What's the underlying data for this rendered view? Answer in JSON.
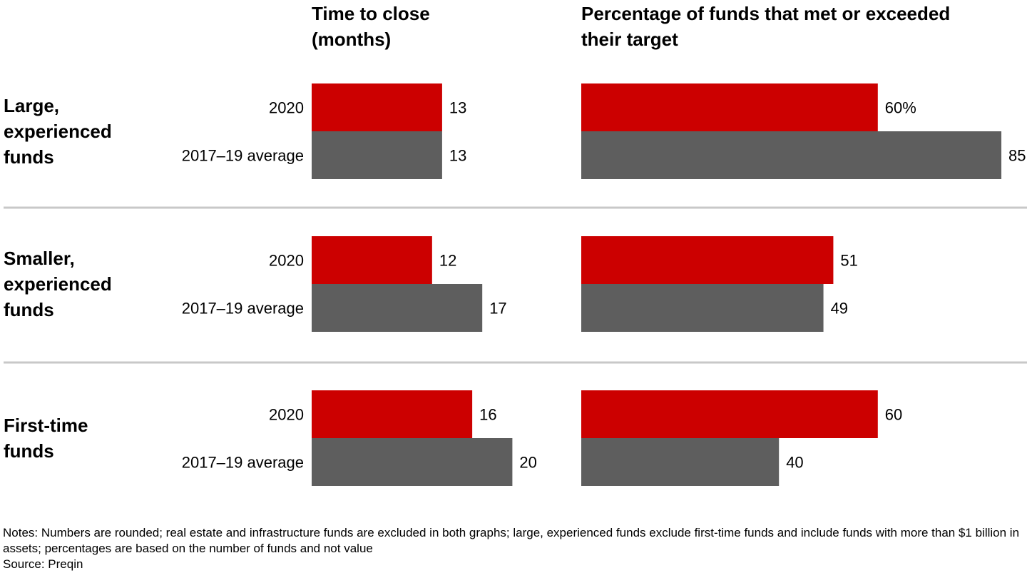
{
  "chart_data": {
    "type": "bar",
    "orientation": "horizontal",
    "colors": {
      "2020": "#cc0000",
      "2017–19 average": "#5e5e5e",
      "divider": "#c8c8c8"
    },
    "panels": [
      {
        "title": [
          "Time to close",
          "(months)"
        ],
        "value_suffix_first": ""
      },
      {
        "title": [
          "Percentage of funds that met or exceeded",
          "their target"
        ],
        "value_suffix_first": "%"
      }
    ],
    "series_labels": [
      "2020",
      "2017–19 average"
    ],
    "groups": [
      {
        "label": [
          "Large,",
          "experienced",
          "funds"
        ],
        "time_to_close": [
          13,
          13
        ],
        "pct_met_target": [
          60,
          85
        ]
      },
      {
        "label": [
          "Smaller,",
          "experienced",
          "funds"
        ],
        "time_to_close": [
          12,
          17
        ],
        "pct_met_target": [
          51,
          49
        ]
      },
      {
        "label": [
          "First-time",
          "funds"
        ],
        "time_to_close": [
          16,
          20
        ],
        "pct_met_target": [
          60,
          40
        ]
      }
    ],
    "notes": "Notes: Numbers are rounded; real estate and infrastructure funds are excluded in both graphs; large, experienced funds exclude first-time funds and include funds with more than $1 billion in assets; percentages are based on the number of funds and not value",
    "source": "Source: Preqin"
  }
}
